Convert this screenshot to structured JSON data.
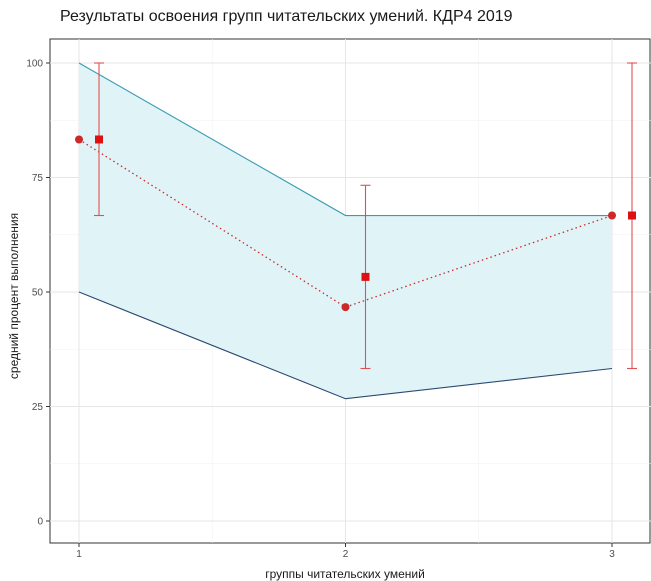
{
  "chart_data": {
    "type": "line",
    "title": "Результаты освоения групп читательских умений. КДР4 2019",
    "xlabel": "группы читательских умений",
    "ylabel": "средний процент выполнения",
    "x": [
      1,
      2,
      3
    ],
    "xticks": [
      "1",
      "2",
      "3"
    ],
    "yticks": [
      "0",
      "25",
      "50",
      "75",
      "100"
    ],
    "ylim": [
      0,
      100
    ],
    "grid": true,
    "band": {
      "upper": [
        100,
        66.7,
        66.7
      ],
      "lower": [
        50,
        26.7,
        33.3
      ],
      "fill": "#e0f4f8",
      "upper_color": "#3a9ab0",
      "lower_color": "#2b4a70"
    },
    "series": [
      {
        "marker": "circle",
        "style": "dotted",
        "color": "#cc2a2a",
        "values": [
          83.3,
          46.7,
          66.7
        ]
      },
      {
        "marker": "square",
        "color": "#dd1111",
        "values": [
          83.3,
          53.3,
          66.7
        ],
        "error_low": [
          66.7,
          33.3,
          33.3
        ],
        "error_high": [
          100,
          73.3,
          100
        ],
        "error_color": "#e05050"
      }
    ]
  }
}
